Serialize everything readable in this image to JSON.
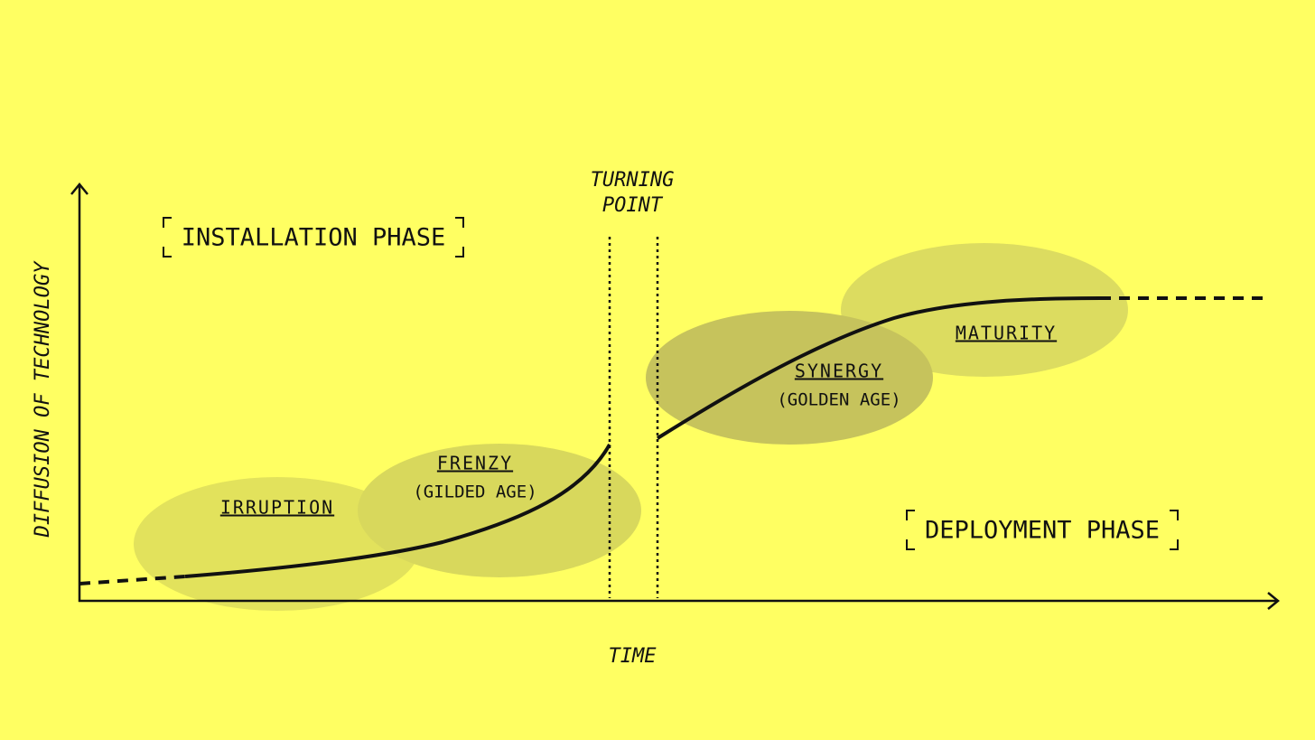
{
  "diagram": {
    "y_axis_label": "DIFFUSION OF TECHNOLOGY",
    "x_axis_label": "TIME",
    "turning_point": [
      "TURNING",
      "POINT"
    ],
    "phases": [
      "INSTALLATION PHASE",
      "DEPLOYMENT PHASE"
    ],
    "stages": [
      {
        "name": "IRRUPTION"
      },
      {
        "name": "FRENZY",
        "subtitle": "(GILDED AGE)"
      },
      {
        "name": "SYNERGY",
        "subtitle": "(GOLDEN AGE)"
      },
      {
        "name": "MATURITY"
      }
    ]
  }
}
